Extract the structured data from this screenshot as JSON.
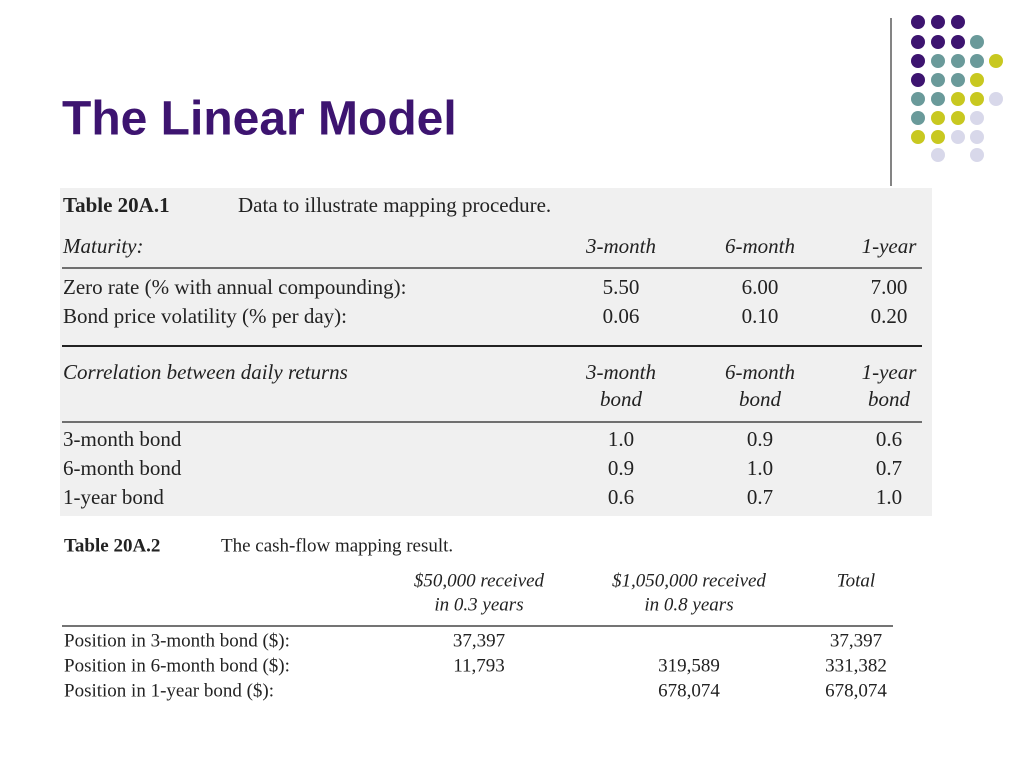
{
  "title": "The Linear Model",
  "table1": {
    "label": "Table 20A.1",
    "caption": "Data to illustrate mapping procedure.",
    "header": [
      "Maturity:",
      "3-month",
      "6-month",
      "1-year"
    ],
    "rows": [
      [
        "Zero rate (% with annual compounding):",
        "5.50",
        "6.00",
        "7.00"
      ],
      [
        "Bond price volatility (% per day):",
        "0.06",
        "0.10",
        "0.20"
      ]
    ],
    "correlation_header": [
      [
        "Correlation between daily returns"
      ],
      [
        "3-month",
        "bond"
      ],
      [
        "6-month",
        "bond"
      ],
      [
        "1-year",
        "bond"
      ]
    ],
    "correlation_rows": [
      [
        "3-month bond",
        "1.0",
        "0.9",
        "0.6"
      ],
      [
        "6-month bond",
        "0.9",
        "1.0",
        "0.7"
      ],
      [
        "1-year bond",
        "0.6",
        "0.7",
        "1.0"
      ]
    ]
  },
  "table2": {
    "label": "Table 20A.2",
    "caption": "The cash-flow mapping result.",
    "header": [
      null,
      [
        "$50,000 received",
        "in 0.3 years"
      ],
      [
        "$1,050,000 received",
        "in 0.8 years"
      ],
      [
        "Total"
      ]
    ],
    "rows": [
      [
        "Position in 3-month bond ($):",
        "37,397",
        null,
        "37,397"
      ],
      [
        "Position in 6-month bond ($):",
        "11,793",
        "319,589",
        "331,382"
      ],
      [
        "Position in 1-year bond ($):",
        null,
        "678,074",
        "678,074"
      ]
    ]
  }
}
